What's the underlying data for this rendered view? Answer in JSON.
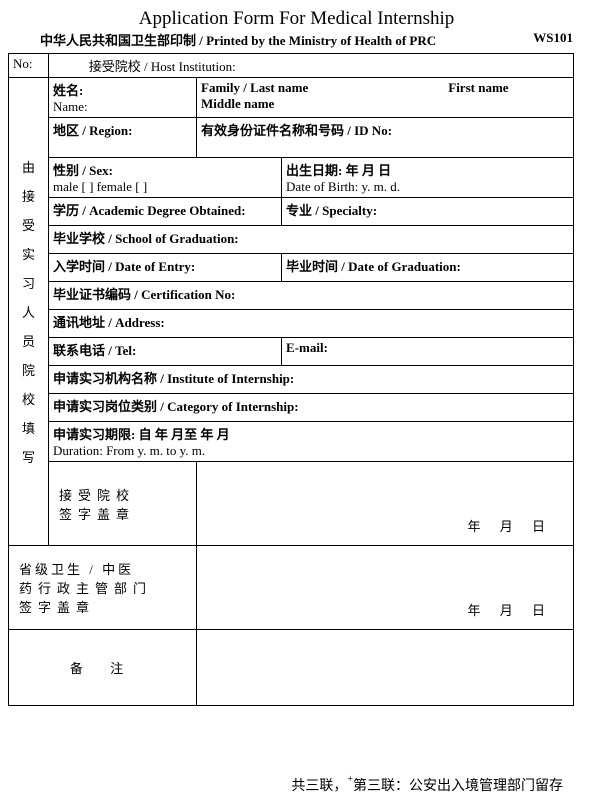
{
  "title": "Application Form For Medical Internship",
  "subtitle": "中华人民共和国卫生部印制 / Printed by the Ministry of Health of PRC",
  "form_code": "WS101",
  "header": {
    "no_label": "No:",
    "host_label": "接受院校 / Host Institution:"
  },
  "vertical_label": "由接受实习人员院校填写",
  "rows": {
    "name_cn": "姓名:",
    "name_en": "Name:",
    "family": "Family / Last name",
    "first": "First name",
    "middle": "Middle name",
    "region": "地区 / Region:",
    "idno": "有效身份证件名称和号码 / ID No:",
    "sex_label": "性别 / Sex:",
    "sex_options": "male [   ]     female [    ]",
    "dob_cn": "出生日期:           年     月     日",
    "dob_en": "Date of Birth:         y.       m.      d.",
    "degree": "学历 / Academic Degree Obtained:",
    "specialty": "专业 / Specialty:",
    "school": "毕业学校 / School of Graduation:",
    "entry": "入学时间 / Date of Entry:",
    "graduation": "毕业时间 / Date of Graduation:",
    "certno": "毕业证书编码 / Certification No:",
    "address": "通讯地址 / Address:",
    "tel": "联系电话 / Tel:",
    "email": "E-mail:",
    "institute": "申请实习机构名称 / Institute of Internship:",
    "category": "申请实习岗位类别 / Category of Internship:",
    "duration_cn": "申请实习期限: 自          年      月至         年      月",
    "duration_en": "Duration: From             y.    m. to            y.     m."
  },
  "sig1_lines": [
    "接受院校",
    "签字盖章"
  ],
  "sig2_lines": [
    "省级卫生 / 中医",
    "药行政主管部门",
    "签字盖章"
  ],
  "date_placeholder": "年  月  日",
  "remark": "备 注",
  "footer": "共三联，第三联：公安出入境管理部门留存",
  "colors": {
    "border": "#000000",
    "text": "#000000",
    "background": "#ffffff"
  },
  "heights": {
    "name_row": 38,
    "region_row": 40,
    "sex_row": 38,
    "single_row": 28,
    "double_row": 40,
    "sig_row": 84,
    "remark_row": 76
  }
}
